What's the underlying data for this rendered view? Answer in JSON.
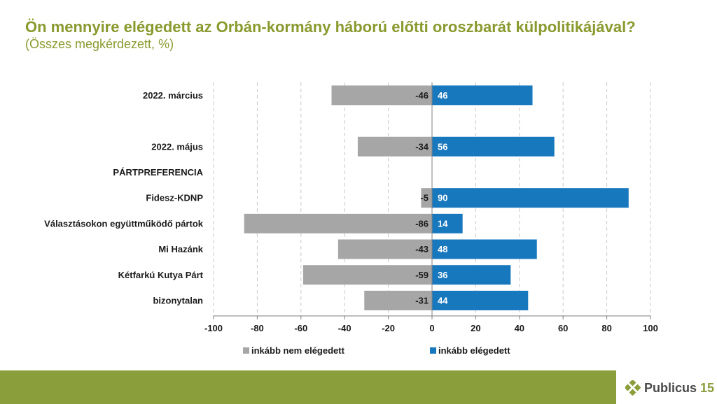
{
  "title": "Ön mennyire elégedett az Orbán-kormány háború előtti oroszbarát külpolitikájával?",
  "subtitle": "(Összes megkérdezett, %)",
  "colors": {
    "negative": "#a6a6a6",
    "positive": "#1878be",
    "title": "#8a9a2e",
    "footer": "#8a9e3c"
  },
  "chart_data": {
    "type": "bar",
    "orientation": "horizontal",
    "stacked": "diverging",
    "title": "Ön mennyire elégedett az Orbán-kormány háború előtti oroszbarát külpolitikájával?",
    "subtitle": "(Összes megkérdezett, %)",
    "categories": [
      "2022. március",
      "",
      "2022. május",
      "PÁRTPREFERENCIA",
      "Fidesz-KDNP",
      "Választásokon együttműködő pártok",
      "Mi Hazánk",
      "Kétfarkú Kutya Párt",
      "bizonytalan"
    ],
    "series": [
      {
        "name": "inkább nem elégedett",
        "values": [
          -46,
          null,
          -34,
          null,
          -5,
          -86,
          -43,
          -59,
          -31
        ]
      },
      {
        "name": "inkább elégedett",
        "values": [
          46,
          null,
          56,
          null,
          90,
          14,
          48,
          36,
          44
        ]
      }
    ],
    "xlim": [
      -100,
      100
    ],
    "xticks": [
      -100,
      -80,
      -60,
      -40,
      -20,
      0,
      20,
      40,
      60,
      80,
      100
    ],
    "grid": true,
    "legend": "bottom"
  },
  "logo": {
    "text": "Publicus",
    "badge": "15"
  }
}
